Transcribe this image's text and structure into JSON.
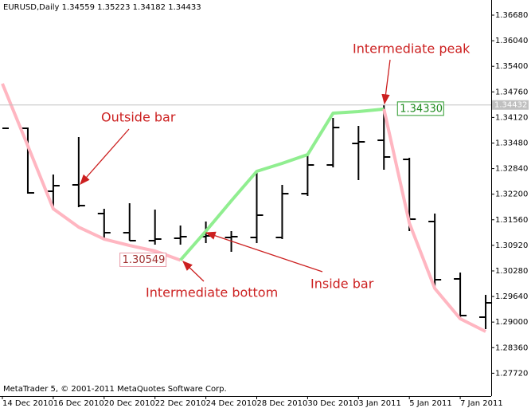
{
  "chart_data": {
    "type": "ohlc",
    "title": "EURUSD,Daily  1.34559 1.35223 1.34182 1.34433",
    "footer": "MetaTrader 5, © 2001-2011 MetaQuotes Software Corp.",
    "categories": [
      "14 Dec 2010",
      null,
      "16 Dec 2010",
      null,
      "20 Dec 2010",
      null,
      "22 Dec 2010",
      null,
      "24 Dec 2010",
      null,
      "28 Dec 2010",
      null,
      "30 Dec 2010",
      null,
      "3 Jan 2011",
      null,
      "5 Jan 2011",
      null,
      "7 Jan 2011",
      null
    ],
    "ohlc": {
      "color": "#000000",
      "open": [
        null,
        1.33849,
        1.32273,
        1.32433,
        1.31715,
        1.31236,
        1.31037,
        1.31097,
        1.31137,
        1.31117,
        1.31117,
        1.31117,
        1.32213,
        1.32931,
        1.3347,
        1.33549,
        1.33071,
        1.31516,
        1.3008,
        1.29123
      ],
      "high": [
        null,
        1.33868,
        1.32692,
        1.33629,
        1.31835,
        1.31974,
        1.31815,
        1.31416,
        1.31516,
        1.31276,
        1.32772,
        1.32433,
        1.3319,
        1.34108,
        1.33908,
        1.34427,
        1.33111,
        1.31715,
        1.30239,
        1.29681
      ],
      "low": [
        null,
        1.32213,
        1.31835,
        1.31874,
        1.31077,
        1.31037,
        1.30937,
        1.30937,
        1.30977,
        1.30758,
        1.30977,
        1.31077,
        1.32154,
        1.32871,
        1.32552,
        1.32812,
        1.31276,
        1.2988,
        1.29103,
        1.28824
      ],
      "close": [
        1.33849,
        1.32233,
        1.32413,
        1.31914,
        1.31236,
        1.31037,
        1.31077,
        1.31137,
        1.31157,
        1.31137,
        1.31675,
        1.32213,
        1.32931,
        1.33868,
        1.3351,
        1.33131,
        1.31575,
        1.3006,
        1.29163,
        1.29482
      ]
    },
    "series": [
      {
        "color": "#ffb6c1",
        "values": [
          1.34965,
          1.3341,
          1.31835,
          1.31376,
          1.31077,
          1.30917,
          1.30778,
          1.30549,
          null,
          null,
          null,
          null,
          null,
          null,
          null,
          null,
          null,
          null,
          null,
          null
        ],
        "value_labels": [
          null,
          null,
          null,
          null,
          null,
          null,
          null,
          "1.30549",
          null,
          null,
          null,
          null,
          null,
          null,
          null,
          null,
          null,
          null,
          null,
          null
        ]
      },
      {
        "color": "#90ee90",
        "values": [
          null,
          null,
          null,
          null,
          null,
          null,
          null,
          1.30549,
          1.31276,
          1.32034,
          1.32772,
          1.32971,
          1.3319,
          1.34227,
          1.34267,
          1.3433,
          null,
          null,
          null,
          null
        ],
        "value_labels": [
          null,
          null,
          null,
          null,
          null,
          null,
          null,
          null,
          null,
          null,
          null,
          null,
          null,
          null,
          null,
          "1.34330",
          null,
          null,
          null,
          null
        ]
      },
      {
        "color": "#ffb6c1",
        "values": [
          null,
          null,
          null,
          null,
          null,
          null,
          null,
          null,
          null,
          null,
          null,
          null,
          null,
          null,
          null,
          1.3433,
          1.31476,
          1.29841,
          1.29083,
          1.28764
        ]
      }
    ],
    "last_price": {
      "value": 1.34432,
      "label": "1.34432"
    },
    "ylim": [
      1.27149,
      1.37059
    ],
    "yticks": [
      {
        "value": 1.3668,
        "label": "1.36680"
      },
      {
        "value": 1.3604,
        "label": "1.36040"
      },
      {
        "value": 1.354,
        "label": "1.35400"
      },
      {
        "value": 1.3476,
        "label": "1.34760"
      },
      {
        "value": 1.3412,
        "label": "1.34120"
      },
      {
        "value": 1.3348,
        "label": "1.33480"
      },
      {
        "value": 1.3284,
        "label": "1.32840"
      },
      {
        "value": 1.322,
        "label": "1.32200"
      },
      {
        "value": 1.3156,
        "label": "1.31560"
      },
      {
        "value": 1.3092,
        "label": "1.30920"
      },
      {
        "value": 1.3028,
        "label": "1.30280"
      },
      {
        "value": 1.2964,
        "label": "1.29640"
      },
      {
        "value": 1.29,
        "label": "1.29000"
      },
      {
        "value": 1.2836,
        "label": "1.28360"
      },
      {
        "value": 1.2772,
        "label": "1.27720"
      }
    ],
    "annotations": [
      "Outside bar",
      "Intermediate peak",
      "Intermediate bottom",
      "Inside bar"
    ]
  }
}
